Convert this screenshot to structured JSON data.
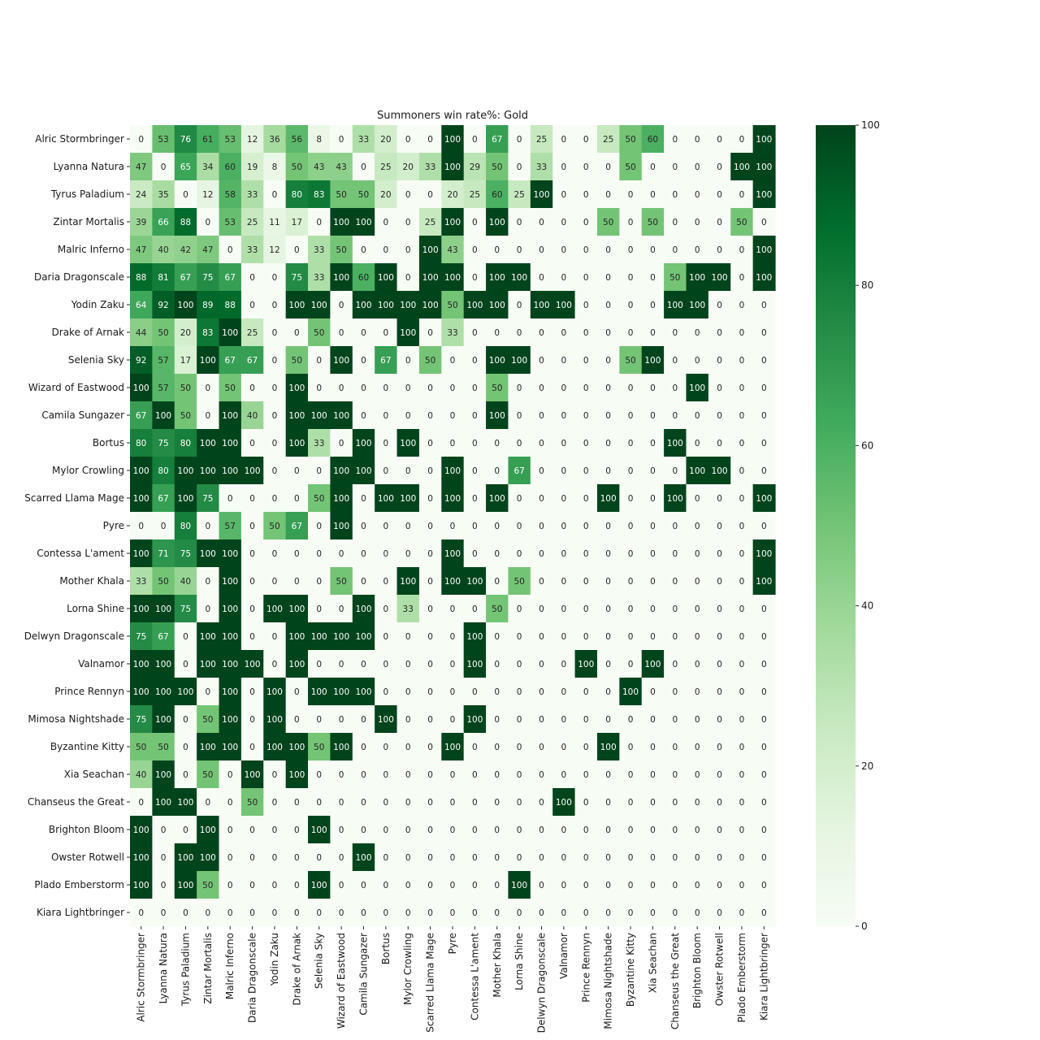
{
  "chart_data": {
    "type": "heatmap",
    "title": "Summoners win rate%: Gold",
    "colormap": "Greens",
    "color_range": [
      0,
      100
    ],
    "colorbar_ticks": [
      0,
      20,
      40,
      60,
      80,
      100
    ],
    "xlabel": "",
    "ylabel": "",
    "rows": [
      "Alric Stormbringer",
      "Lyanna Natura",
      "Tyrus Paladium",
      "Zintar Mortalis",
      "Malric Inferno",
      "Daria Dragonscale",
      "Yodin Zaku",
      "Drake of Arnak",
      "Selenia Sky",
      "Wizard of Eastwood",
      "Camila Sungazer",
      "Bortus",
      "Mylor Crowling",
      "Scarred Llama Mage",
      "Pyre",
      "Contessa L'ament",
      "Mother Khala",
      "Lorna Shine",
      "Delwyn Dragonscale",
      "Valnamor",
      "Prince Rennyn",
      "Mimosa Nightshade",
      "Byzantine Kitty",
      "Xia Seachan",
      "Chanseus the Great",
      "Brighton Bloom",
      "Owster Rotwell",
      "Plado Emberstorm",
      "Kiara Lightbringer"
    ],
    "columns": [
      "Alric Stormbringer",
      "Lyanna Natura",
      "Tyrus Paladium",
      "Zintar Mortalis",
      "Malric Inferno",
      "Daria Dragonscale",
      "Yodin Zaku",
      "Drake of Arnak",
      "Selenia Sky",
      "Wizard of Eastwood",
      "Camila Sungazer",
      "Bortus",
      "Mylor Crowling",
      "Scarred Llama Mage",
      "Pyre",
      "Contessa L'ament",
      "Mother Khala",
      "Lorna Shine",
      "Delwyn Dragonscale",
      "Valnamor",
      "Prince Rennyn",
      "Mimosa Nightshade",
      "Byzantine Kitty",
      "Xia Seachan",
      "Chanseus the Great",
      "Brighton Bloom",
      "Owster Rotwell",
      "Plado Emberstorm",
      "Kiara Lightbringer"
    ],
    "values": [
      [
        0,
        53,
        76,
        61,
        53,
        12,
        36,
        56,
        8,
        0,
        33,
        20,
        0,
        0,
        100,
        0,
        67,
        0,
        25,
        0,
        0,
        25,
        50,
        60,
        0,
        0,
        0,
        0,
        100
      ],
      [
        47,
        0,
        65,
        34,
        60,
        19,
        8,
        50,
        43,
        43,
        0,
        25,
        20,
        33,
        100,
        29,
        50,
        0,
        33,
        0,
        0,
        0,
        50,
        0,
        0,
        0,
        0,
        100,
        100
      ],
      [
        24,
        35,
        0,
        12,
        58,
        33,
        0,
        80,
        83,
        50,
        50,
        20,
        0,
        0,
        20,
        25,
        60,
        25,
        100,
        0,
        0,
        0,
        0,
        0,
        0,
        0,
        0,
        0,
        100
      ],
      [
        39,
        66,
        88,
        0,
        53,
        25,
        11,
        17,
        0,
        100,
        100,
        0,
        0,
        25,
        100,
        0,
        100,
        0,
        0,
        0,
        0,
        50,
        0,
        50,
        0,
        0,
        0,
        50,
        0
      ],
      [
        47,
        40,
        42,
        47,
        0,
        33,
        12,
        0,
        33,
        50,
        0,
        0,
        0,
        100,
        43,
        0,
        0,
        0,
        0,
        0,
        0,
        0,
        0,
        0,
        0,
        0,
        0,
        0,
        100
      ],
      [
        88,
        81,
        67,
        75,
        67,
        0,
        0,
        75,
        33,
        100,
        60,
        100,
        0,
        100,
        100,
        0,
        100,
        100,
        0,
        0,
        0,
        0,
        0,
        0,
        50,
        100,
        100,
        0,
        100
      ],
      [
        64,
        92,
        100,
        89,
        88,
        0,
        0,
        100,
        100,
        0,
        100,
        100,
        100,
        100,
        50,
        100,
        100,
        0,
        100,
        100,
        0,
        0,
        0,
        0,
        100,
        100,
        0,
        0,
        0
      ],
      [
        44,
        50,
        20,
        83,
        100,
        25,
        0,
        0,
        50,
        0,
        0,
        0,
        100,
        0,
        33,
        0,
        0,
        0,
        0,
        0,
        0,
        0,
        0,
        0,
        0,
        0,
        0,
        0,
        0
      ],
      [
        92,
        57,
        17,
        100,
        67,
        67,
        0,
        50,
        0,
        100,
        0,
        67,
        0,
        50,
        0,
        0,
        100,
        100,
        0,
        0,
        0,
        0,
        50,
        100,
        0,
        0,
        0,
        0,
        0
      ],
      [
        100,
        57,
        50,
        0,
        50,
        0,
        0,
        100,
        0,
        0,
        0,
        0,
        0,
        0,
        0,
        0,
        50,
        0,
        0,
        0,
        0,
        0,
        0,
        0,
        0,
        100,
        0,
        0,
        0
      ],
      [
        67,
        100,
        50,
        0,
        100,
        40,
        0,
        100,
        100,
        100,
        0,
        0,
        0,
        0,
        0,
        0,
        100,
        0,
        0,
        0,
        0,
        0,
        0,
        0,
        0,
        0,
        0,
        0,
        0
      ],
      [
        80,
        75,
        80,
        100,
        100,
        0,
        0,
        100,
        33,
        0,
        100,
        0,
        100,
        0,
        0,
        0,
        0,
        0,
        0,
        0,
        0,
        0,
        0,
        0,
        100,
        0,
        0,
        0,
        0
      ],
      [
        100,
        80,
        100,
        100,
        100,
        100,
        0,
        0,
        0,
        100,
        100,
        0,
        0,
        0,
        100,
        0,
        0,
        67,
        0,
        0,
        0,
        0,
        0,
        0,
        0,
        100,
        100,
        0,
        0
      ],
      [
        100,
        67,
        100,
        75,
        0,
        0,
        0,
        0,
        50,
        100,
        0,
        100,
        100,
        0,
        100,
        0,
        100,
        0,
        0,
        0,
        0,
        100,
        0,
        0,
        100,
        0,
        0,
        0,
        100
      ],
      [
        0,
        0,
        80,
        0,
        57,
        0,
        50,
        67,
        0,
        100,
        0,
        0,
        0,
        0,
        0,
        0,
        0,
        0,
        0,
        0,
        0,
        0,
        0,
        0,
        0,
        0,
        0,
        0,
        0
      ],
      [
        100,
        71,
        75,
        100,
        100,
        0,
        0,
        0,
        0,
        0,
        0,
        0,
        0,
        0,
        100,
        0,
        0,
        0,
        0,
        0,
        0,
        0,
        0,
        0,
        0,
        0,
        0,
        0,
        100
      ],
      [
        33,
        50,
        40,
        0,
        100,
        0,
        0,
        0,
        0,
        50,
        0,
        0,
        100,
        0,
        100,
        100,
        0,
        50,
        0,
        0,
        0,
        0,
        0,
        0,
        0,
        0,
        0,
        0,
        100
      ],
      [
        100,
        100,
        75,
        0,
        100,
        0,
        100,
        100,
        0,
        0,
        100,
        0,
        33,
        0,
        0,
        0,
        50,
        0,
        0,
        0,
        0,
        0,
        0,
        0,
        0,
        0,
        0,
        0,
        0
      ],
      [
        75,
        67,
        0,
        100,
        100,
        0,
        0,
        100,
        100,
        100,
        100,
        0,
        0,
        0,
        0,
        100,
        0,
        0,
        0,
        0,
        0,
        0,
        0,
        0,
        0,
        0,
        0,
        0,
        0
      ],
      [
        100,
        100,
        0,
        100,
        100,
        100,
        0,
        100,
        0,
        0,
        0,
        0,
        0,
        0,
        0,
        100,
        0,
        0,
        0,
        0,
        100,
        0,
        0,
        100,
        0,
        0,
        0,
        0,
        0
      ],
      [
        100,
        100,
        100,
        0,
        100,
        0,
        100,
        0,
        100,
        100,
        100,
        0,
        0,
        0,
        0,
        0,
        0,
        0,
        0,
        0,
        0,
        0,
        100,
        0,
        0,
        0,
        0,
        0,
        0
      ],
      [
        75,
        100,
        0,
        50,
        100,
        0,
        100,
        0,
        0,
        0,
        0,
        100,
        0,
        0,
        0,
        100,
        0,
        0,
        0,
        0,
        0,
        0,
        0,
        0,
        0,
        0,
        0,
        0,
        0
      ],
      [
        50,
        50,
        0,
        100,
        100,
        0,
        100,
        100,
        50,
        100,
        0,
        0,
        0,
        0,
        100,
        0,
        0,
        0,
        0,
        0,
        0,
        100,
        0,
        0,
        0,
        0,
        0,
        0,
        0
      ],
      [
        40,
        100,
        0,
        50,
        0,
        100,
        0,
        100,
        0,
        0,
        0,
        0,
        0,
        0,
        0,
        0,
        0,
        0,
        0,
        0,
        0,
        0,
        0,
        0,
        0,
        0,
        0,
        0,
        0
      ],
      [
        0,
        100,
        100,
        0,
        0,
        50,
        0,
        0,
        0,
        0,
        0,
        0,
        0,
        0,
        0,
        0,
        0,
        0,
        0,
        100,
        0,
        0,
        0,
        0,
        0,
        0,
        0,
        0,
        0
      ],
      [
        100,
        0,
        0,
        100,
        0,
        0,
        0,
        0,
        100,
        0,
        0,
        0,
        0,
        0,
        0,
        0,
        0,
        0,
        0,
        0,
        0,
        0,
        0,
        0,
        0,
        0,
        0,
        0,
        0
      ],
      [
        100,
        0,
        100,
        100,
        0,
        0,
        0,
        0,
        0,
        0,
        100,
        0,
        0,
        0,
        0,
        0,
        0,
        0,
        0,
        0,
        0,
        0,
        0,
        0,
        0,
        0,
        0,
        0,
        0
      ],
      [
        100,
        0,
        100,
        50,
        0,
        0,
        0,
        0,
        100,
        0,
        0,
        0,
        0,
        0,
        0,
        0,
        0,
        100,
        0,
        0,
        0,
        0,
        0,
        0,
        0,
        0,
        0,
        0,
        0
      ],
      [
        0,
        0,
        0,
        0,
        0,
        0,
        0,
        0,
        0,
        0,
        0,
        0,
        0,
        0,
        0,
        0,
        0,
        0,
        0,
        0,
        0,
        0,
        0,
        0,
        0,
        0,
        0,
        0,
        0
      ]
    ]
  }
}
